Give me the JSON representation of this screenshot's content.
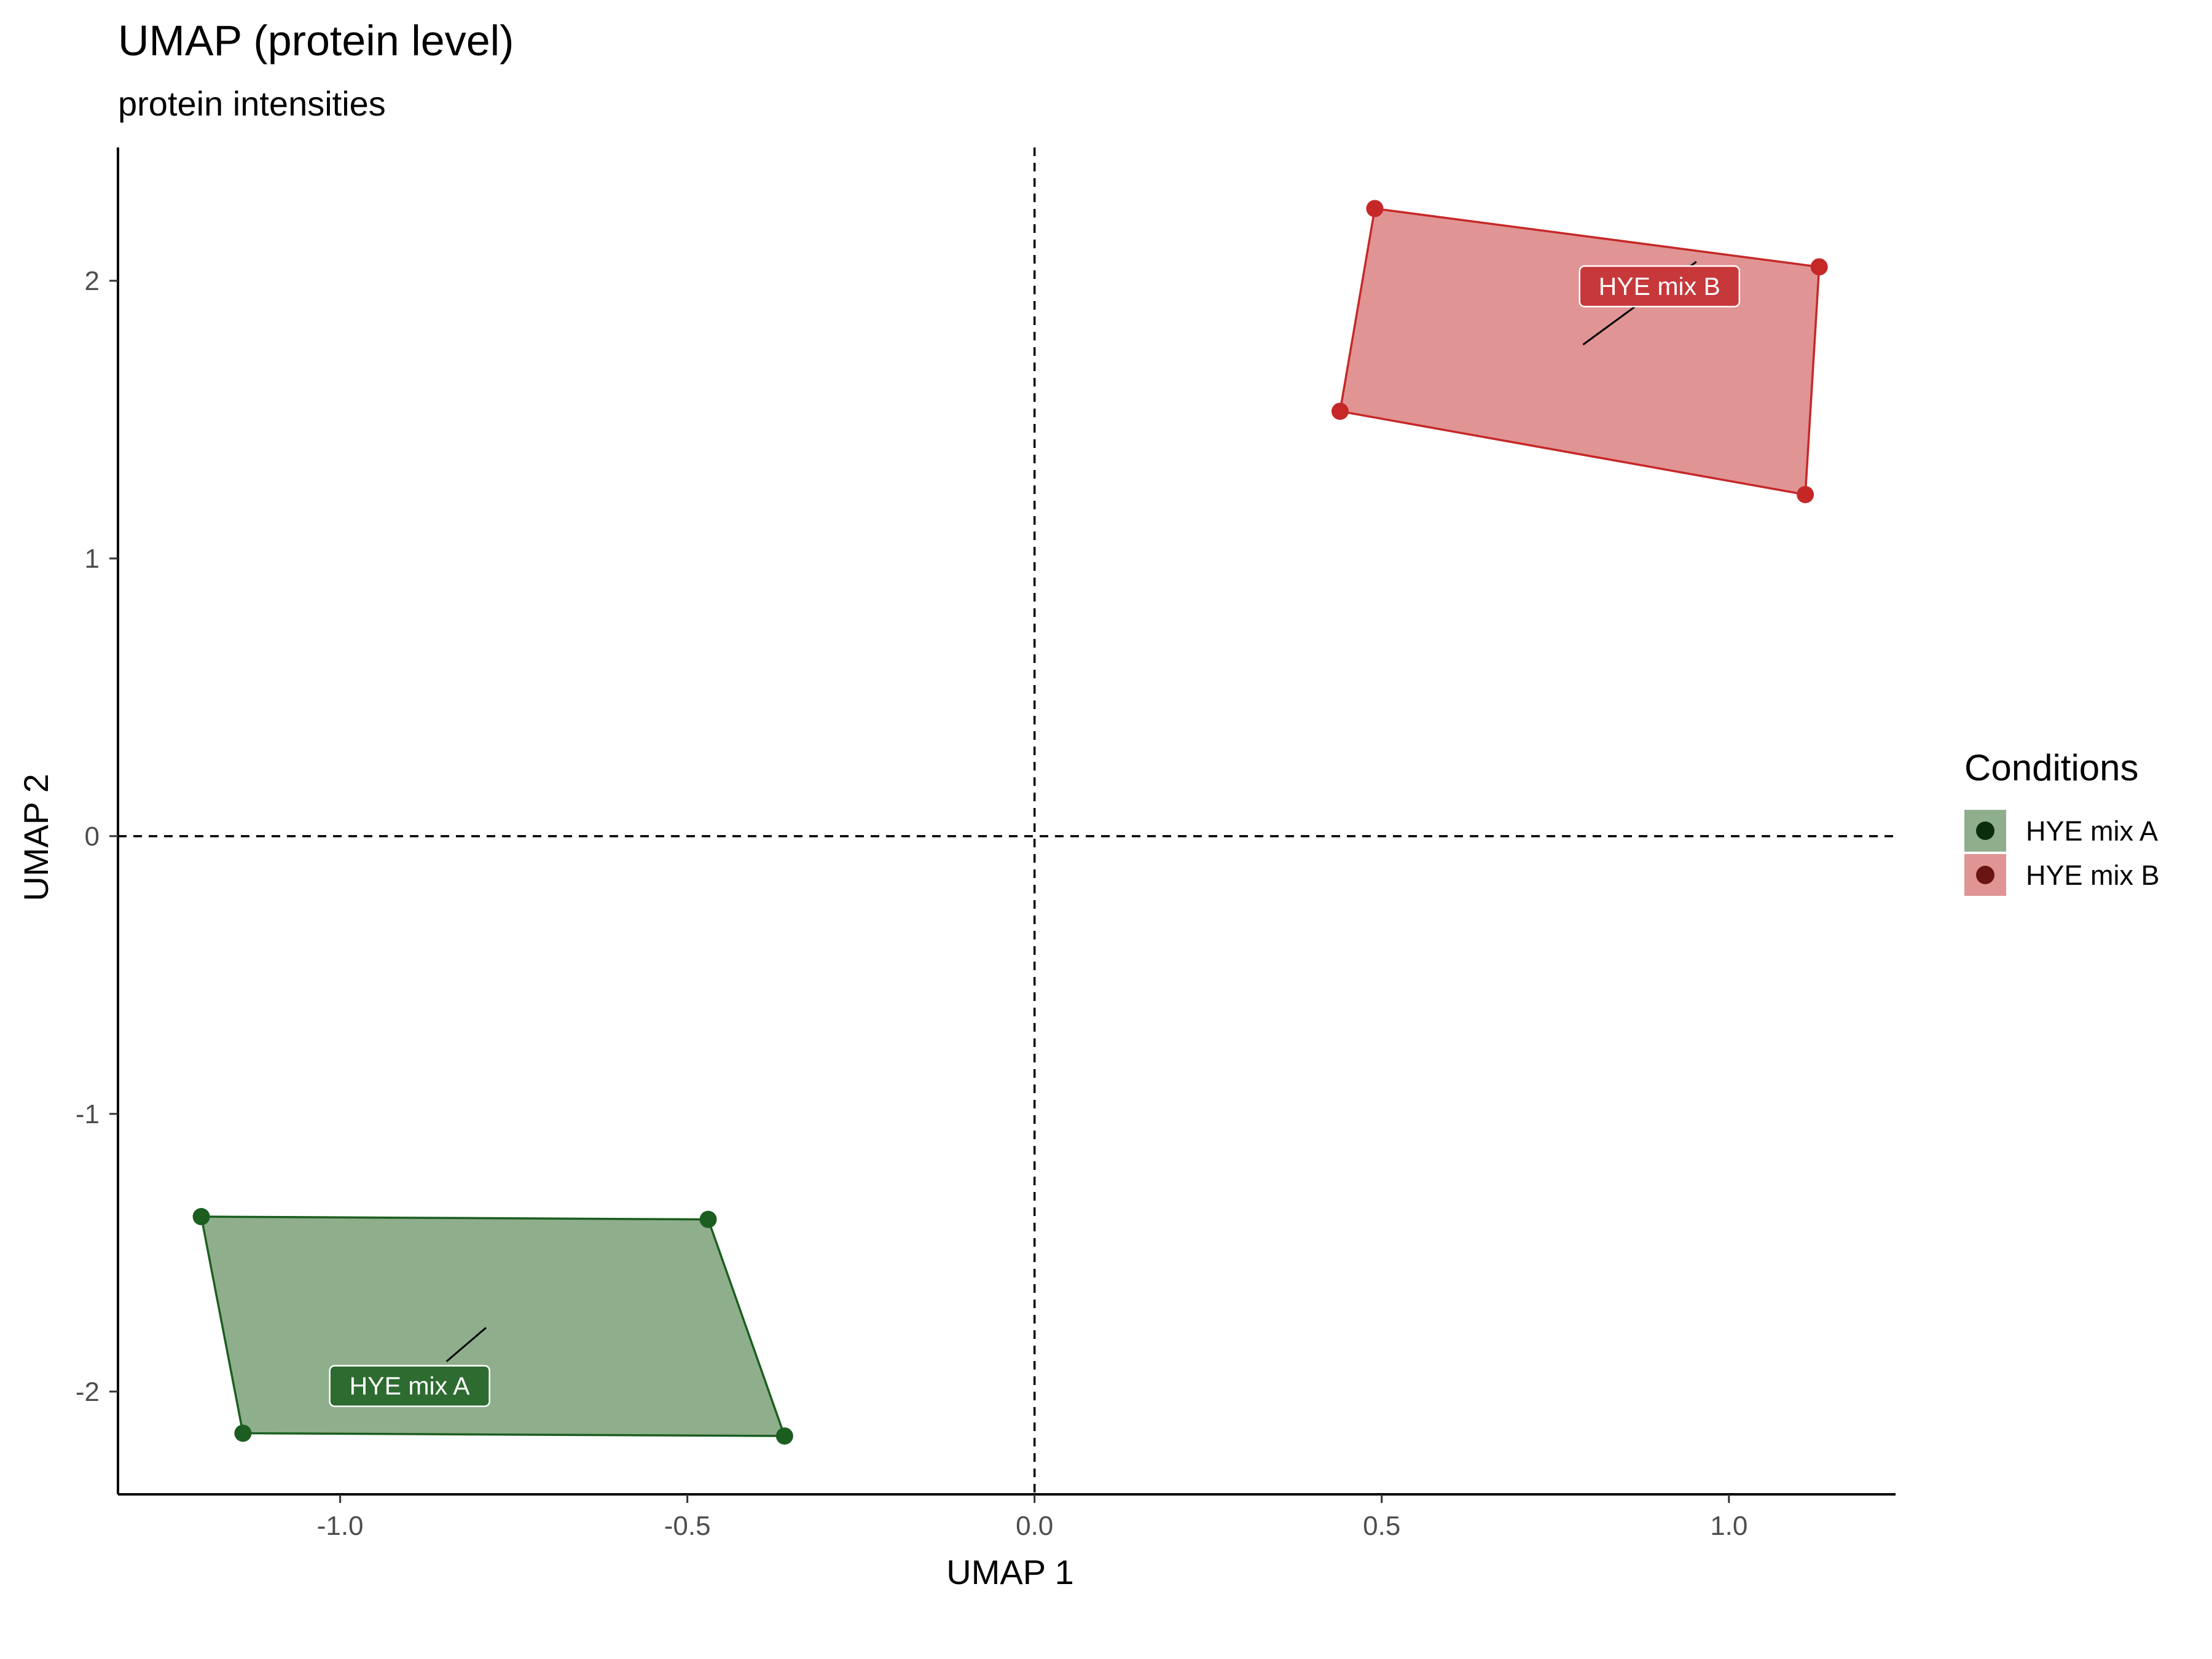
{
  "chart_data": {
    "type": "scatter",
    "title": "UMAP (protein level)",
    "subtitle": "protein intensities",
    "xlabel": "UMAP 1",
    "ylabel": "UMAP 2",
    "xlim": [
      -1.32,
      1.24
    ],
    "ylim": [
      -2.37,
      2.48
    ],
    "x_ticks": [
      -1.0,
      -0.5,
      0.0,
      0.5,
      1.0
    ],
    "x_tick_labels": [
      "-1.0",
      "-0.5",
      "0.0",
      "0.5",
      "1.0"
    ],
    "y_ticks": [
      -2,
      -1,
      0,
      1,
      2
    ],
    "y_tick_labels": [
      "-2",
      "-1",
      "0",
      "1",
      "2"
    ],
    "reference_lines": {
      "x": 0,
      "y": 0,
      "style": "dashed"
    },
    "grid": false,
    "legend": {
      "title": "Conditions",
      "position": "right"
    },
    "series": [
      {
        "name": "HYE mix A",
        "color": "#1b5e20",
        "fill": "#8fae8c",
        "label_color": "#2e6b30",
        "points": [
          {
            "x": -1.2,
            "y": -1.37
          },
          {
            "x": -0.47,
            "y": -1.38
          },
          {
            "x": -0.36,
            "y": -2.16
          },
          {
            "x": -1.14,
            "y": -2.15
          }
        ],
        "label": {
          "text": "HYE mix A",
          "x": -0.9,
          "y": -1.98,
          "point_x": -0.79,
          "point_y": -1.77
        }
      },
      {
        "name": "HYE mix B",
        "color": "#c62828",
        "fill": "#e19494",
        "label_color": "#c7383b",
        "points": [
          {
            "x": 0.49,
            "y": 2.26
          },
          {
            "x": 1.13,
            "y": 2.05
          },
          {
            "x": 1.11,
            "y": 1.23
          },
          {
            "x": 0.44,
            "y": 1.53
          }
        ],
        "label": {
          "text": "HYE mix B",
          "x": 0.9,
          "y": 1.98,
          "point_x": 0.79,
          "point_y": 1.77
        }
      }
    ]
  },
  "legend_items": [
    {
      "label": "HYE mix A",
      "swatch": "#8fae8c",
      "dot": "#0a2e0c"
    },
    {
      "label": "HYE mix B",
      "swatch": "#e19494",
      "dot": "#6b1414"
    }
  ]
}
